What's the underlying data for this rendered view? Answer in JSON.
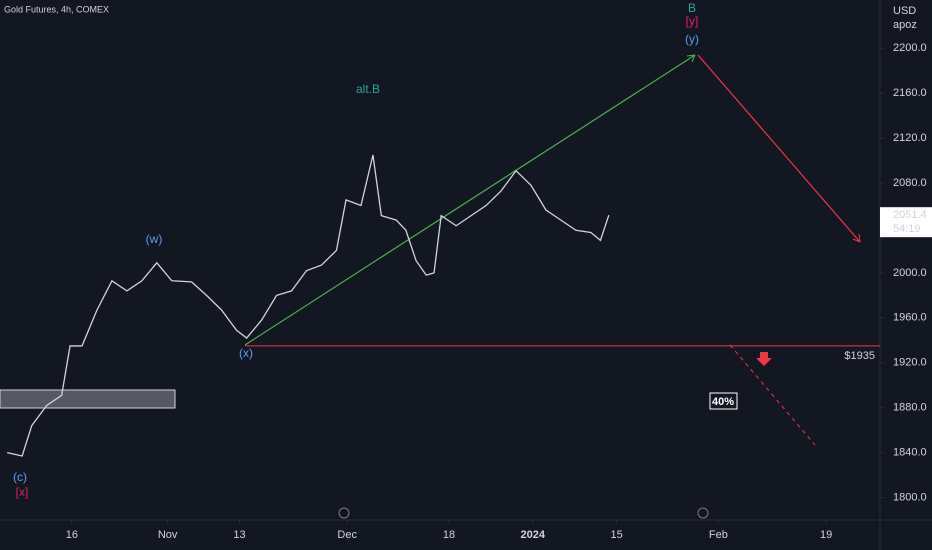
{
  "chart_data": {
    "type": "line",
    "title": "Gold Futures, 4h, COMEX",
    "currency": "USD",
    "unit": "apoz",
    "x": [
      -10.8,
      -8.3,
      -6.7,
      -4.2,
      -1.7,
      -0.3,
      1.7,
      4.2,
      6.7,
      9.2,
      11.7,
      14.2,
      16.7,
      20,
      22.5,
      25,
      27.5,
      29.2,
      31.7,
      34.2,
      36.7,
      39.2,
      41.7,
      44.2,
      45.8,
      48.3,
      50.3,
      51.7,
      54.2,
      55.8,
      57.5,
      59.2,
      60.5,
      61.7,
      64.2,
      66.7,
      69.2,
      71.7,
      74.2,
      76.7,
      79.2,
      81.7,
      84.2,
      86.7,
      88.3,
      89.7
    ],
    "series": [
      {
        "name": "Gold Futures",
        "color": "#d1d4dc",
        "values": [
          1840,
          1837,
          1864,
          1882,
          1891,
          1935,
          1935,
          1967,
          1993,
          1984,
          1993,
          2009,
          1993,
          1992,
          1980,
          1967,
          1949,
          1942,
          1958,
          1980,
          1984,
          2002,
          2007,
          2020,
          2065,
          2060,
          2105,
          2051,
          2047,
          2038,
          2011,
          1998,
          2000,
          2051,
          2042,
          2051,
          2060,
          2073,
          2091,
          2078,
          2056,
          2047,
          2038,
          2036,
          2029,
          2051.4
        ]
      }
    ],
    "xlim": [
      -12,
      135
    ],
    "xticks": [
      {
        "value": 0,
        "label": "16"
      },
      {
        "value": 16,
        "label": "Nov"
      },
      {
        "value": 28,
        "label": "13"
      },
      {
        "value": 46,
        "label": "Dec"
      },
      {
        "value": 63,
        "label": "18"
      },
      {
        "value": 77,
        "label": "2024"
      },
      {
        "value": 91,
        "label": "15"
      },
      {
        "value": 108,
        "label": "Feb"
      },
      {
        "value": 126,
        "label": "19"
      }
    ],
    "ylim": [
      1780,
      2243
    ],
    "yticks": [
      {
        "value": 1800,
        "label": "1800.0"
      },
      {
        "value": 1840,
        "label": "1840.0"
      },
      {
        "value": 1880,
        "label": "1880.0"
      },
      {
        "value": 1920,
        "label": "1920.0"
      },
      {
        "value": 1960,
        "label": "1960.0"
      },
      {
        "value": 2000,
        "label": "2000.0"
      },
      {
        "value": 2040,
        "label": "2040.0"
      },
      {
        "value": 2080,
        "label": "2080.0"
      },
      {
        "value": 2120,
        "label": "2120.0"
      },
      {
        "value": 2160,
        "label": "2160.0"
      },
      {
        "value": 2200,
        "label": "2200.0"
      }
    ],
    "last_price": {
      "value": 2051.4,
      "label": "2051.4"
    },
    "countdown": "54:19",
    "level": {
      "value": 1935,
      "label": "$1935",
      "color": "#f23645"
    },
    "probability": "40%",
    "annotations": [
      {
        "text": "B",
        "color": "#26a69a"
      },
      {
        "text": "[y]",
        "color": "#e91e63"
      },
      {
        "text": "(y)",
        "color": "#5b9cf6"
      },
      {
        "text": "alt.B",
        "color": "#26a69a"
      },
      {
        "text": "(w)",
        "color": "#5b9cf6"
      },
      {
        "text": "(x)",
        "color": "#5b9cf6"
      },
      {
        "text": "(c)",
        "color": "#5b9cf6"
      },
      {
        "text": "[x]",
        "color": "#e91e63"
      }
    ]
  }
}
